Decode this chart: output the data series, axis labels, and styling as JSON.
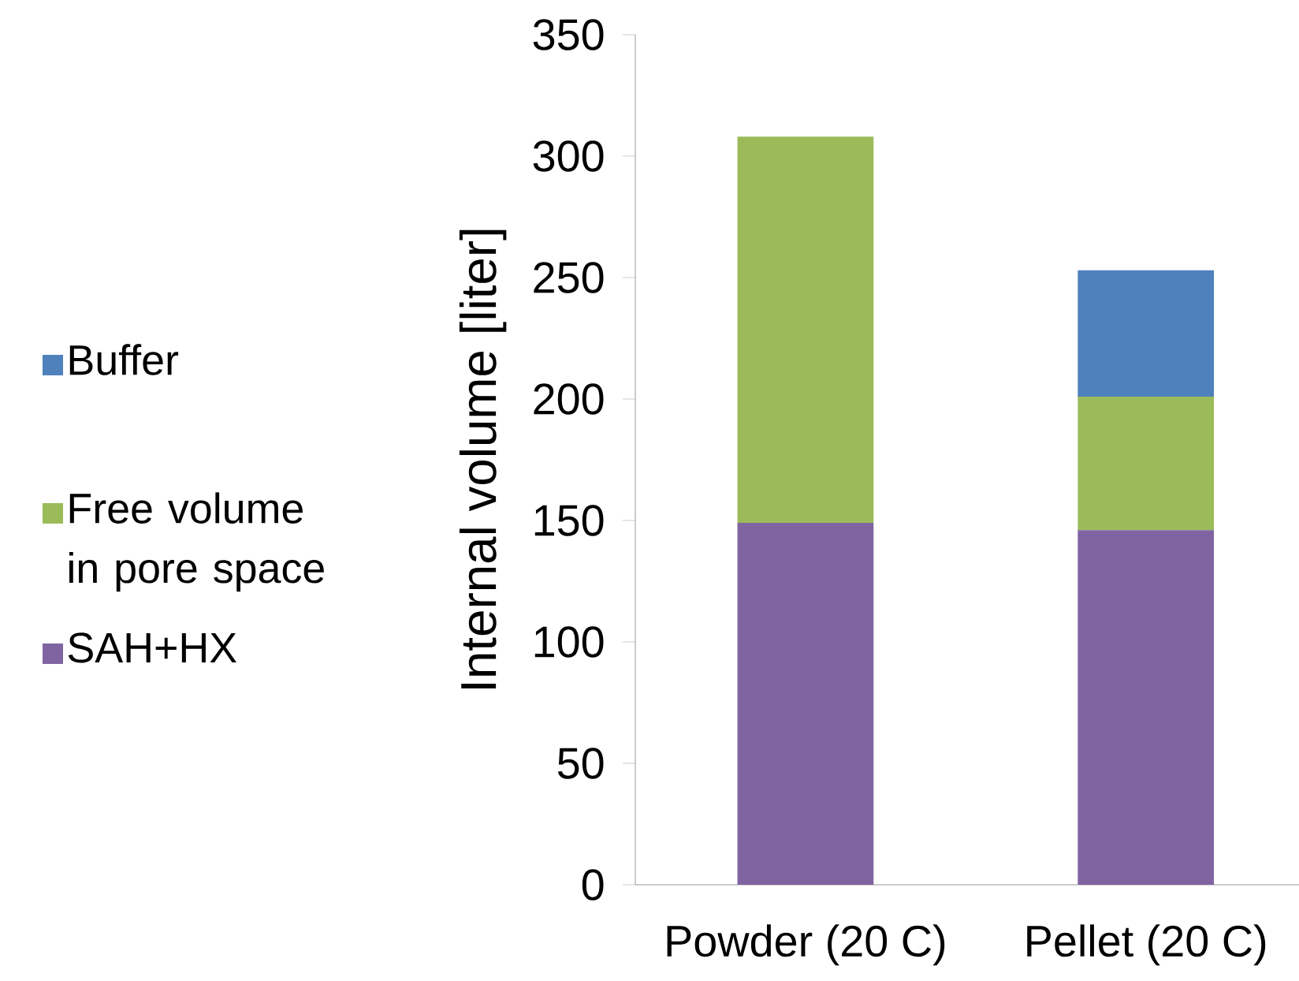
{
  "chart_data": {
    "type": "bar",
    "stacked": true,
    "ylabel": "Internal volume  [liter]",
    "categories": [
      "Powder (20  C)",
      "Pellet (20  C)"
    ],
    "series": [
      {
        "name": "SAH+HX",
        "color": "#8064a2",
        "values": [
          149,
          146
        ]
      },
      {
        "name": "Free volume in pore space",
        "color": "#9bbb59",
        "values": [
          159,
          55
        ]
      },
      {
        "name": "Buffer",
        "color": "#4f81bd",
        "values": [
          null,
          52
        ]
      }
    ],
    "ylim": [
      0,
      350
    ],
    "yticks": [
      0,
      50,
      100,
      150,
      200,
      250,
      300,
      350
    ],
    "grid": false,
    "legend": "left"
  }
}
